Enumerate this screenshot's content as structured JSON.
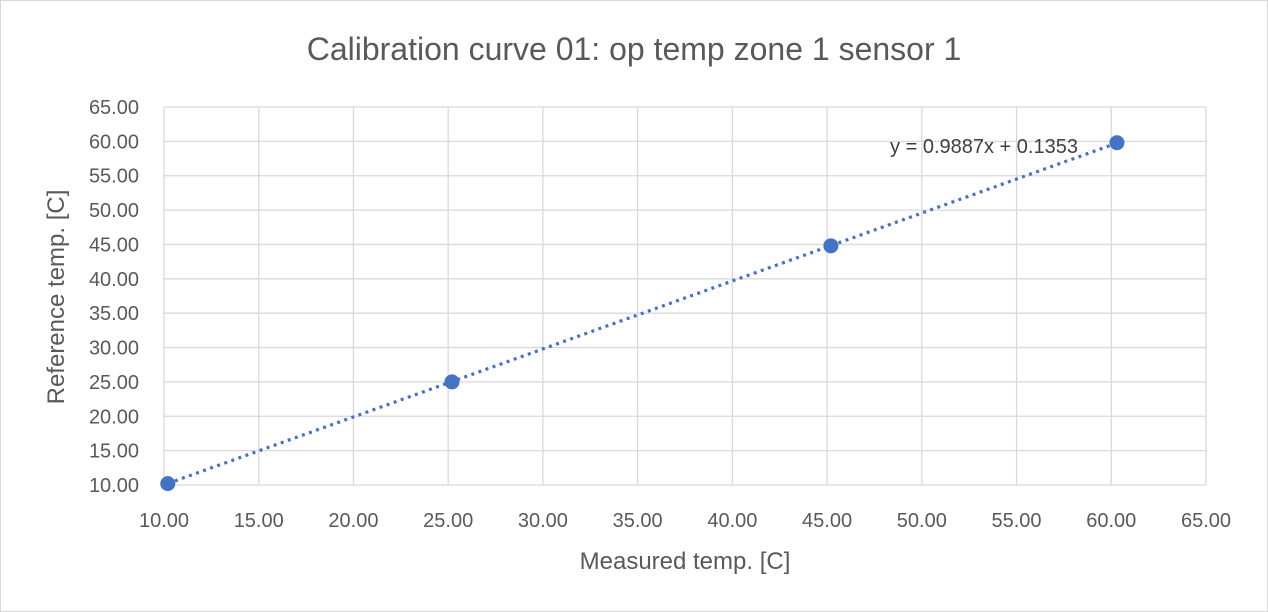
{
  "chart_data": {
    "type": "scatter",
    "title": "Calibration curve 01: op temp zone 1 sensor 1",
    "xlabel": "Measured temp. [C]",
    "ylabel": "Reference temp. [C]",
    "xlim": [
      10,
      65
    ],
    "ylim": [
      10,
      65
    ],
    "x_ticks": [
      "10.00",
      "15.00",
      "20.00",
      "25.00",
      "30.00",
      "35.00",
      "40.00",
      "45.00",
      "50.00",
      "55.00",
      "60.00",
      "65.00"
    ],
    "y_ticks": [
      "10.00",
      "15.00",
      "20.00",
      "25.00",
      "30.00",
      "35.00",
      "40.00",
      "45.00",
      "50.00",
      "55.00",
      "60.00",
      "65.00"
    ],
    "grid": true,
    "series": [
      {
        "points": [
          {
            "x": 10.2,
            "y": 10.2
          },
          {
            "x": 25.2,
            "y": 25.0
          },
          {
            "x": 45.2,
            "y": 44.8
          },
          {
            "x": 60.3,
            "y": 59.8
          }
        ]
      }
    ],
    "trendline": {
      "type": "linear",
      "style": "dotted",
      "slope": 0.9887,
      "intercept": 0.1353,
      "x_range": [
        10.2,
        60.3
      ],
      "label": "y = 0.9887x + 0.1353"
    },
    "colors": {
      "series": "#4472c4",
      "grid": "#d9d9d9",
      "text": "#595959"
    }
  }
}
